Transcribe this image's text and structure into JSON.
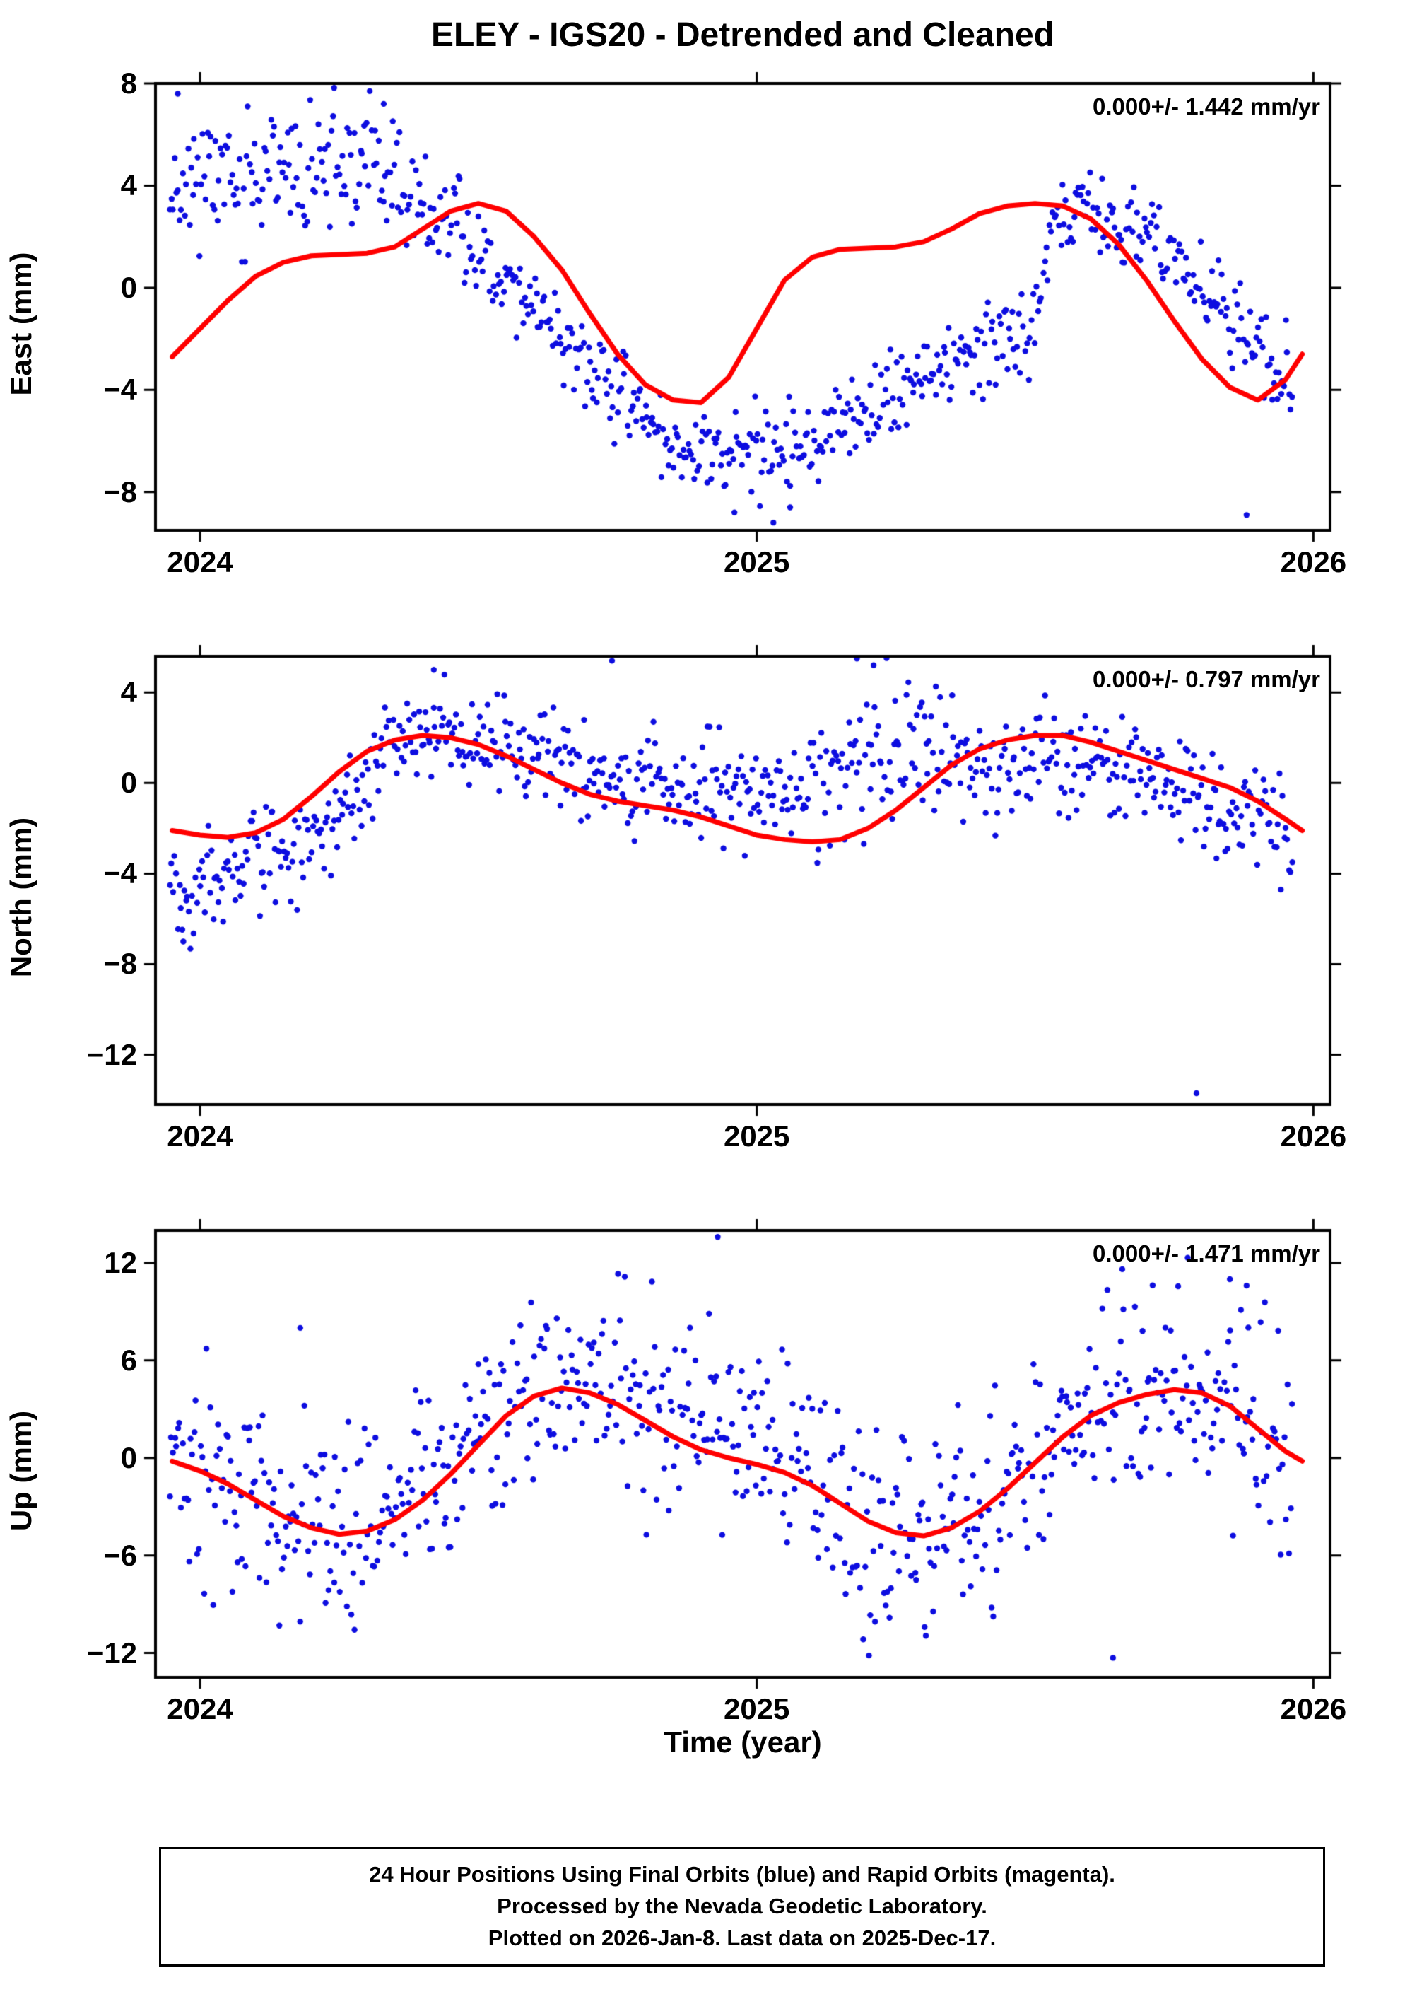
{
  "title": "ELEY - IGS20 - Detrended and Cleaned",
  "xlabel": "Time (year)",
  "colors": {
    "points": "#0d0de0",
    "fit": "#ff0000",
    "frame": "#000000",
    "background": "#ffffff"
  },
  "footer": {
    "lines": [
      "24 Hour Positions Using Final Orbits (blue) and Rapid Orbits (magenta).",
      "Processed by the Nevada Geodetic Laboratory.",
      "Plotted on 2026-Jan-8. Last data on 2025-Dec-17."
    ]
  },
  "chart_data": [
    {
      "type": "scatter",
      "name": "east",
      "ylabel": "East (mm)",
      "annotation": "0.000+/- 1.442 mm/yr",
      "xlim": [
        2023.92,
        2026.03
      ],
      "ylim": [
        -9.5,
        8
      ],
      "xticks": [
        2024,
        2025,
        2026
      ],
      "yticks": [
        8,
        4,
        0,
        -4,
        -8
      ],
      "fit_curve": [
        [
          2023.95,
          -2.7
        ],
        [
          2024.0,
          -1.6
        ],
        [
          2024.05,
          -0.5
        ],
        [
          2024.1,
          0.45
        ],
        [
          2024.15,
          1.0
        ],
        [
          2024.2,
          1.25
        ],
        [
          2024.25,
          1.3
        ],
        [
          2024.3,
          1.35
        ],
        [
          2024.35,
          1.6
        ],
        [
          2024.4,
          2.3
        ],
        [
          2024.45,
          3.0
        ],
        [
          2024.5,
          3.3
        ],
        [
          2024.55,
          3.0
        ],
        [
          2024.6,
          2.0
        ],
        [
          2024.65,
          0.7
        ],
        [
          2024.7,
          -1.0
        ],
        [
          2024.75,
          -2.6
        ],
        [
          2024.8,
          -3.8
        ],
        [
          2024.85,
          -4.4
        ],
        [
          2024.9,
          -4.5
        ],
        [
          2024.95,
          -3.5
        ],
        [
          2025.0,
          -1.6
        ],
        [
          2025.05,
          0.3
        ],
        [
          2025.1,
          1.2
        ],
        [
          2025.15,
          1.5
        ],
        [
          2025.2,
          1.55
        ],
        [
          2025.25,
          1.6
        ],
        [
          2025.3,
          1.8
        ],
        [
          2025.35,
          2.3
        ],
        [
          2025.4,
          2.9
        ],
        [
          2025.45,
          3.2
        ],
        [
          2025.5,
          3.3
        ],
        [
          2025.55,
          3.2
        ],
        [
          2025.6,
          2.7
        ],
        [
          2025.65,
          1.7
        ],
        [
          2025.7,
          0.3
        ],
        [
          2025.75,
          -1.3
        ],
        [
          2025.8,
          -2.8
        ],
        [
          2025.85,
          -3.9
        ],
        [
          2025.9,
          -4.4
        ],
        [
          2025.95,
          -3.6
        ],
        [
          2025.98,
          -2.6
        ]
      ],
      "scatter_model": {
        "n": 690,
        "t_start": 2023.946,
        "t_end": 2025.962,
        "seed": 11,
        "trend": [
          [
            2023.95,
            4.2
          ],
          [
            2024.05,
            4.3
          ],
          [
            2024.15,
            4.3
          ],
          [
            2024.25,
            4.7
          ],
          [
            2024.32,
            4.8
          ],
          [
            2024.38,
            3.2
          ],
          [
            2024.45,
            2.3
          ],
          [
            2024.5,
            1.4
          ],
          [
            2024.55,
            0.4
          ],
          [
            2024.6,
            -0.7
          ],
          [
            2024.65,
            -2.0
          ],
          [
            2024.7,
            -3.2
          ],
          [
            2024.75,
            -4.2
          ],
          [
            2024.8,
            -5.2
          ],
          [
            2024.85,
            -6.0
          ],
          [
            2024.9,
            -6.3
          ],
          [
            2024.95,
            -6.5
          ],
          [
            2025.0,
            -6.6
          ],
          [
            2025.05,
            -6.4
          ],
          [
            2025.1,
            -6.0
          ],
          [
            2025.15,
            -5.5
          ],
          [
            2025.2,
            -5.0
          ],
          [
            2025.25,
            -4.3
          ],
          [
            2025.3,
            -3.7
          ],
          [
            2025.35,
            -3.0
          ],
          [
            2025.4,
            -2.4
          ],
          [
            2025.45,
            -1.8
          ],
          [
            2025.5,
            -1.2
          ],
          [
            2025.53,
            2.6
          ],
          [
            2025.58,
            3.0
          ],
          [
            2025.63,
            2.8
          ],
          [
            2025.68,
            2.3
          ],
          [
            2025.73,
            1.6
          ],
          [
            2025.78,
            0.7
          ],
          [
            2025.83,
            -0.5
          ],
          [
            2025.88,
            -1.8
          ],
          [
            2025.93,
            -3.2
          ],
          [
            2025.98,
            -3.9
          ]
        ],
        "sd": [
          [
            2023.95,
            1.3
          ],
          [
            2024.3,
            1.2
          ],
          [
            2024.45,
            0.9
          ],
          [
            2024.7,
            0.8
          ],
          [
            2025.0,
            0.9
          ],
          [
            2025.3,
            0.9
          ],
          [
            2025.5,
            0.9
          ],
          [
            2025.7,
            0.7
          ],
          [
            2025.98,
            1.0
          ]
        ]
      },
      "outliers": [
        [
          2023.96,
          7.6
        ],
        [
          2024.33,
          7.2
        ],
        [
          2024.96,
          -8.8
        ],
        [
          2025.03,
          -9.2
        ],
        [
          2025.06,
          -8.6
        ],
        [
          2025.88,
          -8.9
        ]
      ]
    },
    {
      "type": "scatter",
      "name": "north",
      "ylabel": "North (mm)",
      "annotation": "0.000+/- 0.797 mm/yr",
      "xlim": [
        2023.92,
        2026.03
      ],
      "ylim": [
        -14.2,
        5.6
      ],
      "xticks": [
        2024,
        2025,
        2026
      ],
      "yticks": [
        4,
        0,
        -4,
        -8,
        -12
      ],
      "fit_curve": [
        [
          2023.95,
          -2.1
        ],
        [
          2024.0,
          -2.3
        ],
        [
          2024.05,
          -2.4
        ],
        [
          2024.1,
          -2.2
        ],
        [
          2024.15,
          -1.6
        ],
        [
          2024.2,
          -0.6
        ],
        [
          2024.25,
          0.5
        ],
        [
          2024.3,
          1.4
        ],
        [
          2024.35,
          1.9
        ],
        [
          2024.4,
          2.1
        ],
        [
          2024.45,
          2.0
        ],
        [
          2024.5,
          1.7
        ],
        [
          2024.55,
          1.2
        ],
        [
          2024.6,
          0.6
        ],
        [
          2024.65,
          0.0
        ],
        [
          2024.7,
          -0.5
        ],
        [
          2024.75,
          -0.8
        ],
        [
          2024.8,
          -1.0
        ],
        [
          2024.85,
          -1.2
        ],
        [
          2024.9,
          -1.5
        ],
        [
          2024.95,
          -1.9
        ],
        [
          2025.0,
          -2.3
        ],
        [
          2025.05,
          -2.5
        ],
        [
          2025.1,
          -2.6
        ],
        [
          2025.15,
          -2.5
        ],
        [
          2025.2,
          -2.0
        ],
        [
          2025.25,
          -1.2
        ],
        [
          2025.3,
          -0.2
        ],
        [
          2025.35,
          0.8
        ],
        [
          2025.4,
          1.5
        ],
        [
          2025.45,
          1.9
        ],
        [
          2025.5,
          2.1
        ],
        [
          2025.55,
          2.1
        ],
        [
          2025.6,
          1.8
        ],
        [
          2025.65,
          1.4
        ],
        [
          2025.7,
          1.0
        ],
        [
          2025.75,
          0.6
        ],
        [
          2025.8,
          0.2
        ],
        [
          2025.85,
          -0.2
        ],
        [
          2025.9,
          -0.8
        ],
        [
          2025.95,
          -1.6
        ],
        [
          2025.98,
          -2.1
        ]
      ],
      "scatter_model": {
        "n": 700,
        "t_start": 2023.946,
        "t_end": 2025.962,
        "seed": 22,
        "trend": [
          [
            2023.95,
            -4.8
          ],
          [
            2024.0,
            -4.3
          ],
          [
            2024.05,
            -3.7
          ],
          [
            2024.1,
            -3.2
          ],
          [
            2024.15,
            -3.0
          ],
          [
            2024.2,
            -2.7
          ],
          [
            2024.25,
            -1.5
          ],
          [
            2024.3,
            0.2
          ],
          [
            2024.35,
            1.4
          ],
          [
            2024.4,
            2.0
          ],
          [
            2024.45,
            2.2
          ],
          [
            2024.5,
            2.1
          ],
          [
            2024.55,
            1.9
          ],
          [
            2024.6,
            1.5
          ],
          [
            2024.65,
            1.1
          ],
          [
            2024.7,
            0.6
          ],
          [
            2024.75,
            0.2
          ],
          [
            2024.8,
            0.0
          ],
          [
            2024.85,
            -0.2
          ],
          [
            2024.9,
            -0.3
          ],
          [
            2024.95,
            -0.4
          ],
          [
            2025.0,
            -0.4
          ],
          [
            2025.05,
            -0.5
          ],
          [
            2025.1,
            -0.4
          ],
          [
            2025.15,
            0.4
          ],
          [
            2025.2,
            1.6
          ],
          [
            2025.25,
            2.2
          ],
          [
            2025.3,
            1.9
          ],
          [
            2025.35,
            1.2
          ],
          [
            2025.4,
            0.8
          ],
          [
            2025.45,
            0.8
          ],
          [
            2025.5,
            1.0
          ],
          [
            2025.55,
            1.0
          ],
          [
            2025.6,
            0.8
          ],
          [
            2025.65,
            0.5
          ],
          [
            2025.7,
            0.3
          ],
          [
            2025.75,
            -0.2
          ],
          [
            2025.8,
            -0.6
          ],
          [
            2025.85,
            -1.2
          ],
          [
            2025.9,
            -1.8
          ],
          [
            2025.95,
            -2.4
          ],
          [
            2025.98,
            -2.7
          ]
        ],
        "sd": [
          [
            2023.95,
            1.1
          ],
          [
            2024.5,
            1.0
          ],
          [
            2025.0,
            1.1
          ],
          [
            2025.2,
            1.6
          ],
          [
            2025.4,
            1.2
          ],
          [
            2025.98,
            1.2
          ]
        ]
      },
      "outliers": [
        [
          2023.97,
          -7.0
        ],
        [
          2024.42,
          5.0
        ],
        [
          2024.74,
          5.4
        ],
        [
          2025.18,
          5.5
        ],
        [
          2025.21,
          5.2
        ],
        [
          2025.79,
          -13.7
        ]
      ]
    },
    {
      "type": "scatter",
      "name": "up",
      "ylabel": "Up (mm)",
      "annotation": "0.000+/- 1.471 mm/yr",
      "xlim": [
        2023.92,
        2026.03
      ],
      "ylim": [
        -13.5,
        14.0
      ],
      "xticks": [
        2024,
        2025,
        2026
      ],
      "yticks": [
        12,
        6,
        0,
        -6,
        -12
      ],
      "fit_curve": [
        [
          2023.95,
          -0.2
        ],
        [
          2024.0,
          -0.8
        ],
        [
          2024.05,
          -1.6
        ],
        [
          2024.1,
          -2.6
        ],
        [
          2024.15,
          -3.6
        ],
        [
          2024.2,
          -4.3
        ],
        [
          2024.25,
          -4.7
        ],
        [
          2024.3,
          -4.5
        ],
        [
          2024.35,
          -3.8
        ],
        [
          2024.4,
          -2.6
        ],
        [
          2024.45,
          -1.0
        ],
        [
          2024.5,
          0.8
        ],
        [
          2024.55,
          2.6
        ],
        [
          2024.6,
          3.8
        ],
        [
          2024.65,
          4.3
        ],
        [
          2024.7,
          4.0
        ],
        [
          2024.75,
          3.3
        ],
        [
          2024.8,
          2.3
        ],
        [
          2024.85,
          1.3
        ],
        [
          2024.9,
          0.5
        ],
        [
          2024.95,
          0.0
        ],
        [
          2025.0,
          -0.4
        ],
        [
          2025.05,
          -0.9
        ],
        [
          2025.1,
          -1.7
        ],
        [
          2025.15,
          -2.8
        ],
        [
          2025.2,
          -3.9
        ],
        [
          2025.25,
          -4.6
        ],
        [
          2025.3,
          -4.8
        ],
        [
          2025.35,
          -4.3
        ],
        [
          2025.4,
          -3.3
        ],
        [
          2025.45,
          -1.9
        ],
        [
          2025.5,
          -0.3
        ],
        [
          2025.55,
          1.3
        ],
        [
          2025.6,
          2.6
        ],
        [
          2025.65,
          3.4
        ],
        [
          2025.7,
          3.9
        ],
        [
          2025.75,
          4.2
        ],
        [
          2025.8,
          4.0
        ],
        [
          2025.85,
          3.2
        ],
        [
          2025.9,
          1.8
        ],
        [
          2025.95,
          0.4
        ],
        [
          2025.98,
          -0.2
        ]
      ],
      "scatter_model": {
        "n": 700,
        "t_start": 2023.946,
        "t_end": 2025.962,
        "seed": 33,
        "trend": [
          [
            2023.95,
            -0.5
          ],
          [
            2024.0,
            -1.0
          ],
          [
            2024.05,
            -2.0
          ],
          [
            2024.1,
            -2.8
          ],
          [
            2024.15,
            -3.6
          ],
          [
            2024.2,
            -4.2
          ],
          [
            2024.25,
            -4.6
          ],
          [
            2024.3,
            -4.4
          ],
          [
            2024.35,
            -3.6
          ],
          [
            2024.4,
            -2.4
          ],
          [
            2024.45,
            -1.0
          ],
          [
            2024.5,
            0.8
          ],
          [
            2024.55,
            2.4
          ],
          [
            2024.6,
            3.6
          ],
          [
            2024.65,
            4.2
          ],
          [
            2024.7,
            4.0
          ],
          [
            2024.75,
            3.4
          ],
          [
            2024.8,
            2.8
          ],
          [
            2024.85,
            2.6
          ],
          [
            2024.9,
            2.8
          ],
          [
            2024.95,
            2.4
          ],
          [
            2025.0,
            1.2
          ],
          [
            2025.05,
            0.0
          ],
          [
            2025.1,
            -1.4
          ],
          [
            2025.15,
            -2.8
          ],
          [
            2025.2,
            -3.8
          ],
          [
            2025.25,
            -4.4
          ],
          [
            2025.3,
            -4.6
          ],
          [
            2025.35,
            -4.2
          ],
          [
            2025.4,
            -3.2
          ],
          [
            2025.45,
            -2.0
          ],
          [
            2025.5,
            -0.4
          ],
          [
            2025.55,
            1.2
          ],
          [
            2025.6,
            2.6
          ],
          [
            2025.65,
            3.4
          ],
          [
            2025.7,
            3.9
          ],
          [
            2025.75,
            4.2
          ],
          [
            2025.8,
            4.0
          ],
          [
            2025.85,
            3.4
          ],
          [
            2025.9,
            2.2
          ],
          [
            2025.95,
            0.8
          ],
          [
            2025.98,
            0.2
          ]
        ],
        "sd": [
          [
            2023.95,
            3.3
          ],
          [
            2024.6,
            2.9
          ],
          [
            2025.0,
            3.3
          ],
          [
            2025.5,
            3.1
          ],
          [
            2025.98,
            3.2
          ]
        ]
      },
      "outliers": [
        [
          2024.18,
          8.0
        ],
        [
          2024.93,
          13.6
        ],
        [
          2025.64,
          -12.3
        ],
        [
          2025.85,
          11.0
        ],
        [
          2025.88,
          10.6
        ]
      ]
    }
  ]
}
